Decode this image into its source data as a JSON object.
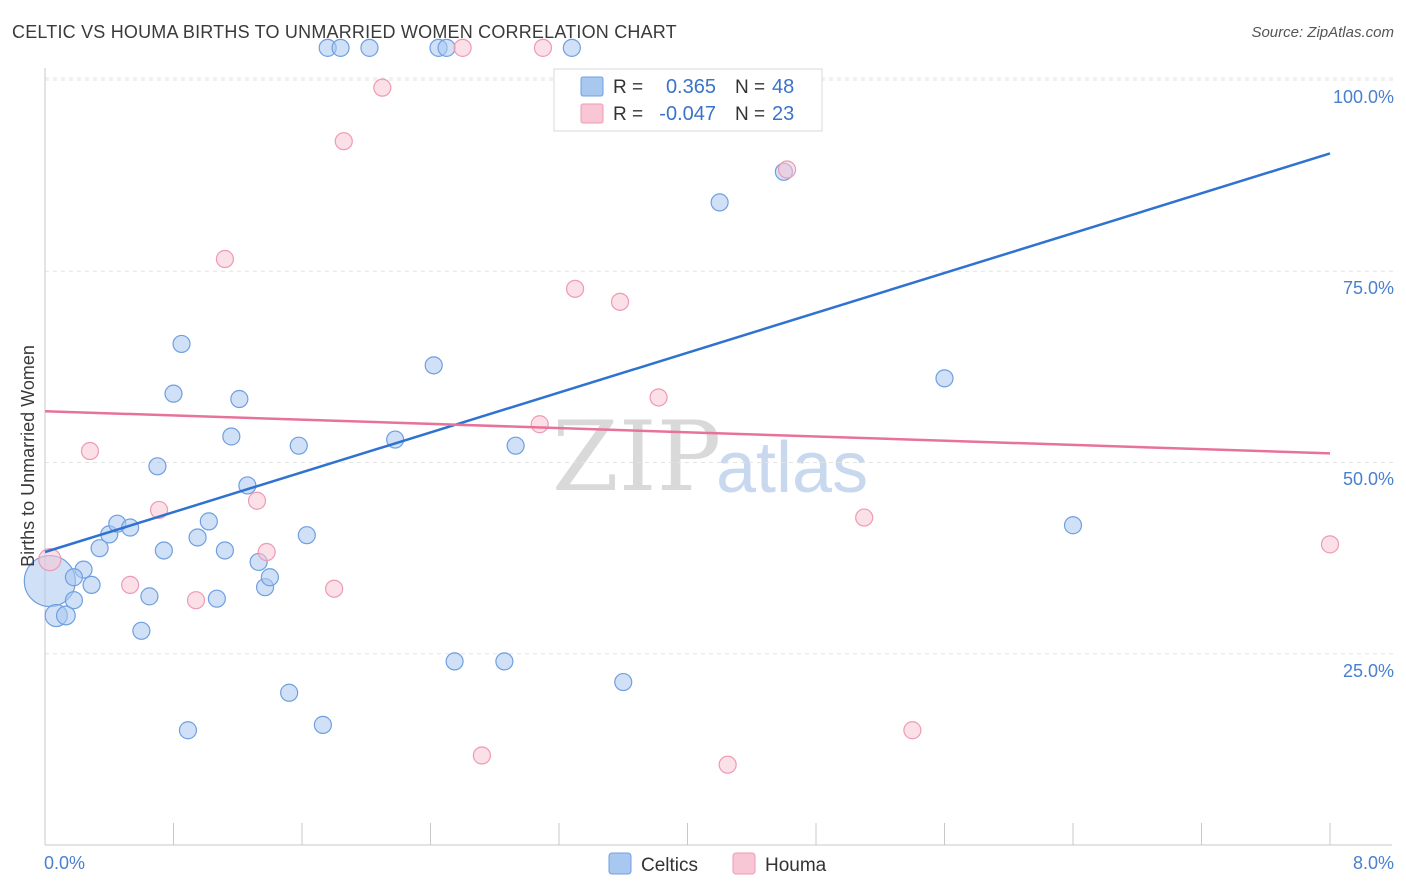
{
  "title": "CELTIC VS HOUMA BIRTHS TO UNMARRIED WOMEN CORRELATION CHART",
  "source": "Source: ZipAtlas.com",
  "chart_data": {
    "type": "scatter",
    "title": "CELTIC VS HOUMA BIRTHS TO UNMARRIED WOMEN CORRELATION CHART",
    "xlabel": "",
    "ylabel": "Births to Unmarried Women",
    "xlim": [
      0,
      8
    ],
    "ylim": [
      0,
      104
    ],
    "x_tick_labels": [
      "0.0%",
      "8.0%"
    ],
    "y_ticks": [
      25,
      50,
      75,
      100
    ],
    "y_tick_labels": [
      "25.0%",
      "50.0%",
      "75.0%",
      "100.0%"
    ],
    "watermark": [
      "ZIP",
      "atlas"
    ],
    "legend": [
      {
        "name": "Celtics",
        "r_label": "R =",
        "r": "0.365",
        "n_label": "N =",
        "n": "48",
        "color": "#a9c8f0",
        "stroke": "#6f9fe0",
        "line": "#2f72d0"
      },
      {
        "name": "Houma",
        "r_label": "R =",
        "r": "-0.047",
        "n_label": "N =",
        "n": "23",
        "color": "#f8c6d4",
        "stroke": "#ee9ab4",
        "line": "#e8739a"
      }
    ],
    "series": [
      {
        "name": "Celtics",
        "trend": {
          "x": [
            0,
            8
          ],
          "y": [
            38.3,
            90.4
          ]
        },
        "points": [
          [
            0.03,
            34.5,
            3
          ],
          [
            0.07,
            30,
            1.3
          ],
          [
            0.13,
            30,
            1.1
          ],
          [
            0.18,
            32,
            1
          ],
          [
            0.24,
            36,
            1
          ],
          [
            0.29,
            34,
            1
          ],
          [
            0.34,
            38.8,
            1
          ],
          [
            0.4,
            40.6,
            1
          ],
          [
            0.45,
            42,
            1
          ],
          [
            0.53,
            41.5,
            1
          ],
          [
            0.6,
            28,
            1
          ],
          [
            0.65,
            32.5,
            1
          ],
          [
            0.7,
            49.5,
            1
          ],
          [
            0.74,
            38.5,
            1
          ],
          [
            0.8,
            59,
            1
          ],
          [
            0.85,
            65.5,
            1
          ],
          [
            0.89,
            15,
            1
          ],
          [
            0.95,
            40.2,
            1
          ],
          [
            1.02,
            42.3,
            1
          ],
          [
            1.07,
            32.2,
            1
          ],
          [
            1.12,
            38.5,
            1
          ],
          [
            1.16,
            53.4,
            1
          ],
          [
            1.21,
            58.3,
            1
          ],
          [
            1.26,
            47,
            1
          ],
          [
            1.33,
            37,
            1
          ],
          [
            1.37,
            33.7,
            1
          ],
          [
            1.4,
            35,
            1
          ],
          [
            1.52,
            19.9,
            1
          ],
          [
            1.58,
            52.2,
            1
          ],
          [
            1.63,
            40.5,
            1
          ],
          [
            1.73,
            15.7,
            1
          ],
          [
            1.76,
            104.2,
            1
          ],
          [
            1.84,
            104.2,
            1
          ],
          [
            2.02,
            104.2,
            1
          ],
          [
            2.18,
            53,
            1
          ],
          [
            2.42,
            62.7,
            1
          ],
          [
            2.45,
            104.2,
            1
          ],
          [
            2.5,
            104.2,
            1
          ],
          [
            2.55,
            24,
            1
          ],
          [
            2.86,
            24,
            1
          ],
          [
            2.93,
            52.2,
            1
          ],
          [
            3.28,
            104.2,
            1
          ],
          [
            3.6,
            21.3,
            1
          ],
          [
            4.2,
            84,
            1
          ],
          [
            4.6,
            88,
            1
          ],
          [
            5.6,
            61,
            1
          ],
          [
            6.4,
            41.8,
            1
          ],
          [
            0.18,
            35,
            1
          ]
        ]
      },
      {
        "name": "Houma",
        "trend": {
          "x": [
            0,
            8
          ],
          "y": [
            56.7,
            51.2
          ]
        },
        "points": [
          [
            0.03,
            37.3,
            1.3
          ],
          [
            0.28,
            51.5,
            1
          ],
          [
            0.53,
            34,
            1
          ],
          [
            0.71,
            43.8,
            1
          ],
          [
            0.94,
            32,
            1
          ],
          [
            1.12,
            76.6,
            1
          ],
          [
            1.32,
            45,
            1
          ],
          [
            1.38,
            38.3,
            1
          ],
          [
            1.8,
            33.5,
            1
          ],
          [
            1.86,
            92,
            1
          ],
          [
            2.1,
            99,
            1
          ],
          [
            2.6,
            104.2,
            1
          ],
          [
            2.72,
            11.7,
            1
          ],
          [
            3.08,
            55,
            1
          ],
          [
            3.1,
            104.2,
            1
          ],
          [
            3.3,
            72.7,
            1
          ],
          [
            3.58,
            71,
            1
          ],
          [
            3.82,
            58.5,
            1
          ],
          [
            4.25,
            10.5,
            1
          ],
          [
            4.62,
            88.3,
            1
          ],
          [
            5.1,
            42.8,
            1
          ],
          [
            5.4,
            15,
            1
          ],
          [
            8.0,
            39.3,
            1
          ]
        ]
      }
    ]
  }
}
